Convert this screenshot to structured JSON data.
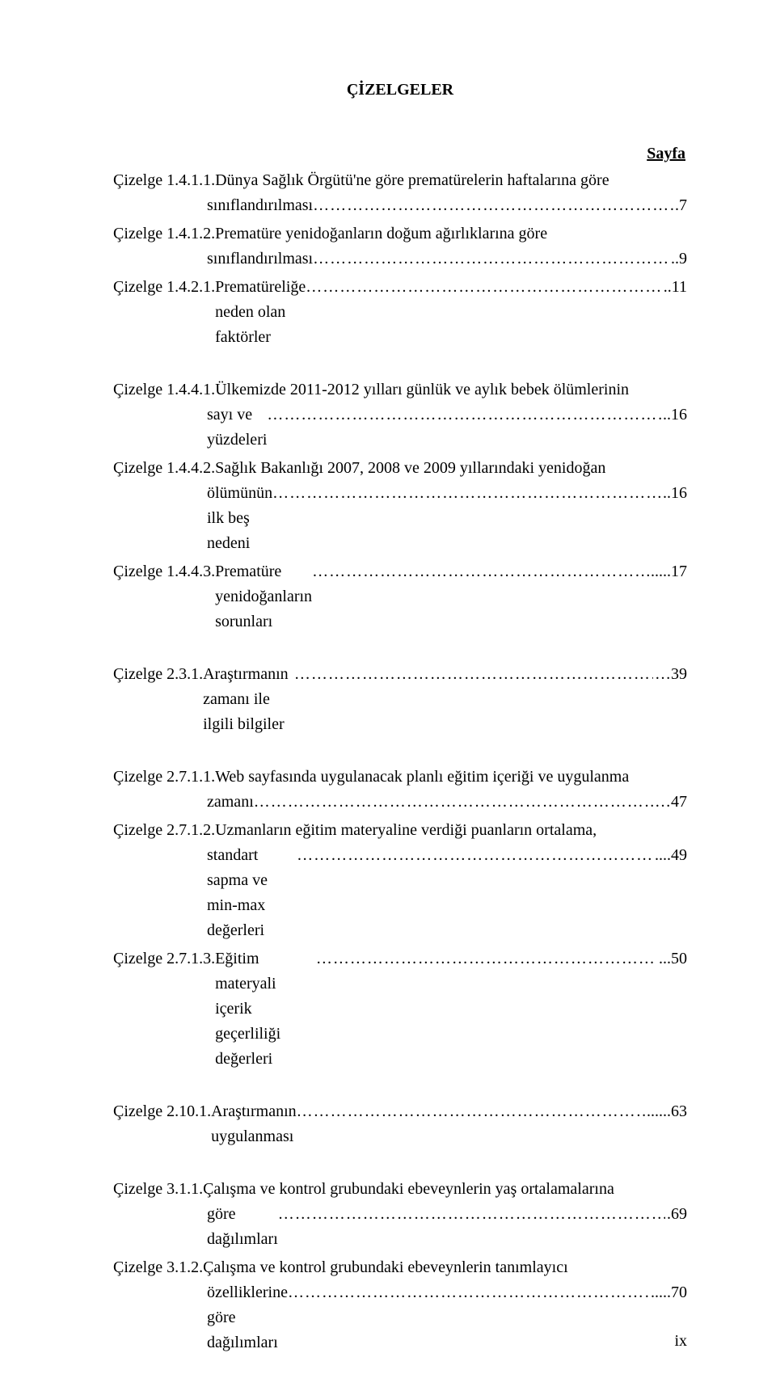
{
  "title": "ÇİZELGELER",
  "sayfa_label": "Sayfa",
  "dots": "……………………………………………………………………………………………………………………………………………………",
  "page_number": "ix",
  "entries": [
    {
      "prefix": "Çizelge 1.4.1.1. ",
      "first": "Dünya Sağlık Örgütü'ne göre prematürelerin haftalarına göre",
      "cont": "sınıflandırılması",
      "page": ".7",
      "gap_after": false
    },
    {
      "prefix": "Çizelge 1.4.1.2. ",
      "first": "Prematüre yenidoğanların doğum ağırlıklarına göre",
      "cont": "sınıflandırılması",
      "page": "..9",
      "gap_after": false
    },
    {
      "prefix": "Çizelge 1.4.2.1. ",
      "first": "Prematüreliğe neden olan faktörler",
      "cont": null,
      "page": "..11",
      "gap_after": true
    },
    {
      "prefix": "Çizelge 1.4.4.1. ",
      "first": "Ülkemizde 2011-2012 yılları günlük ve aylık bebek ölümlerinin",
      "cont": "sayı ve yüzdeleri",
      "page": "..16",
      "gap_after": false
    },
    {
      "prefix": "Çizelge 1.4.4.2. ",
      "first": "Sağlık Bakanlığı 2007, 2008 ve 2009 yıllarındaki yenidoğan",
      "cont": "ölümünün ilk beş nedeni",
      "page": "..16",
      "gap_after": false
    },
    {
      "prefix": "Çizelge 1.4.4.3. ",
      "first": "Prematüre yenidoğanların sorunları",
      "cont": null,
      "page": ".....17",
      "gap_after": true
    },
    {
      "prefix": "Çizelge 2.3.1. ",
      "first": "Araştırmanın zamanı ile ilgili bilgiler",
      "cont": null,
      "page": "…39",
      "gap_after": true
    },
    {
      "prefix": "Çizelge 2.7.1.1. ",
      "first": "Web sayfasında uygulanacak planlı eğitim içeriği ve uygulanma",
      "cont": "zamanı",
      "page": "…47",
      "gap_after": false
    },
    {
      "prefix": "Çizelge 2.7.1.2. ",
      "first": "Uzmanların eğitim materyaline verdiği puanların ortalama,",
      "cont": "standart sapma ve min-max değerleri",
      "page": "....49",
      "gap_after": false
    },
    {
      "prefix": "Çizelge 2.7.1.3. ",
      "first": "Eğitim materyali içerik geçerliliği değerleri",
      "cont": null,
      "page": "...50",
      "gap_after": true
    },
    {
      "prefix": "Çizelge 2.10.1. ",
      "first": "Araştırmanın uygulanması",
      "cont": null,
      "page": "......63",
      "gap_after": true
    },
    {
      "prefix": "Çizelge 3.1.1. ",
      "first": "Çalışma ve kontrol grubundaki ebeveynlerin yaş ortalamalarına",
      "cont": "göre  dağılımları",
      "page": ".69",
      "gap_after": false
    },
    {
      "prefix": "Çizelge 3.1.2. ",
      "first": "Çalışma ve kontrol grubundaki ebeveynlerin tanımlayıcı",
      "cont": "özelliklerine göre dağılımları",
      "page": ".....70",
      "gap_after": false
    }
  ]
}
